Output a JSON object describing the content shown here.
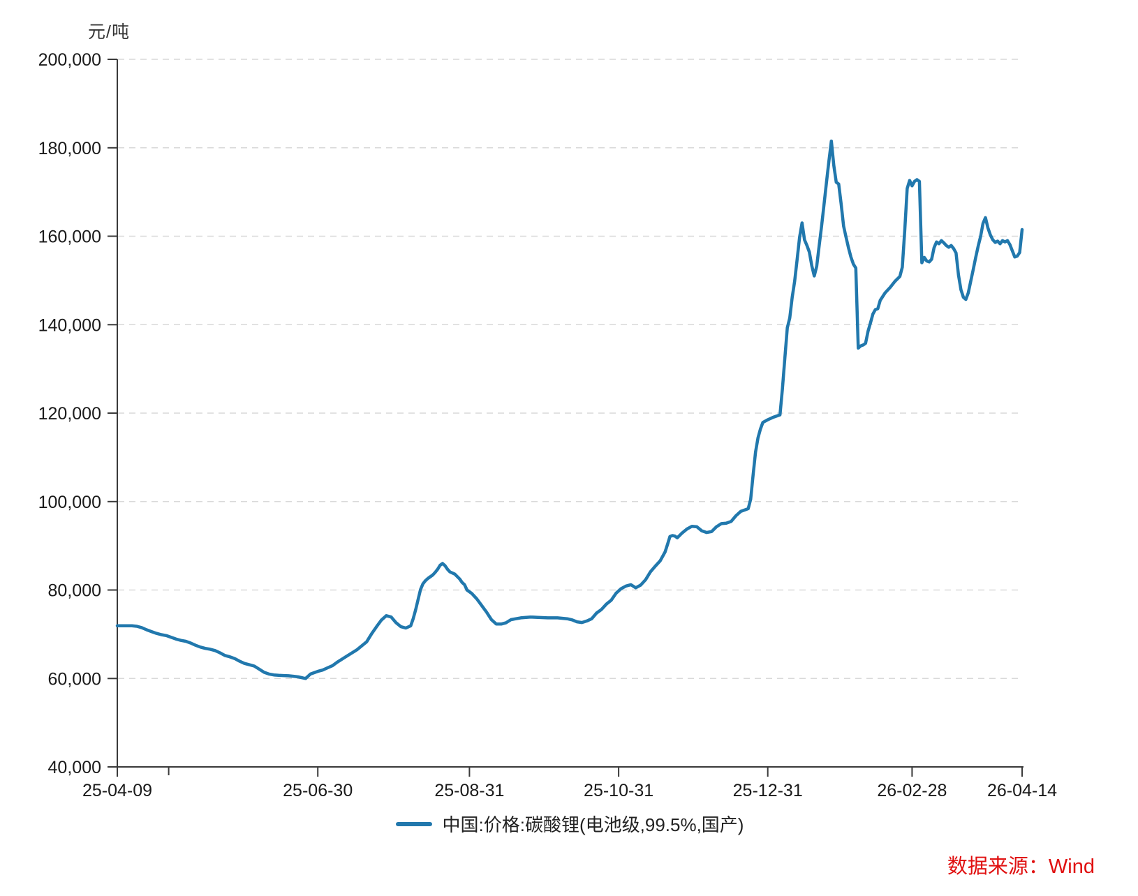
{
  "chart": {
    "unit_label": "元/吨",
    "legend_label": "中国:价格:碳酸锂(电池级,99.5%,国产)",
    "source_label": "数据来源：Wind",
    "colors": {
      "line": "#2178ad",
      "axis": "#3a3a3a",
      "tick_text": "#1a1a1a",
      "grid": "#d9d9d9",
      "source_text": "#e01010"
    }
  },
  "chart_data": {
    "type": "line",
    "title": "",
    "xlabel": "",
    "ylabel": "元/吨",
    "grid": "horizontal-dashed",
    "legend_position": "bottom-center",
    "x_axis": {
      "start_date": "2025-04-09",
      "end_date": "2026-04-14",
      "total_days": 370,
      "tick_labels": [
        "25-04-09",
        "25-06-30",
        "25-08-31",
        "25-10-31",
        "25-12-31",
        "26-02-28",
        "26-04-14"
      ],
      "tick_day_offsets": [
        0,
        82,
        144,
        205,
        266,
        325,
        370
      ],
      "minor_tick_day_offsets": [
        21
      ]
    },
    "y_axis": {
      "min": 40000,
      "max": 200000,
      "step": 20000,
      "tick_labels": [
        "40,000",
        "60,000",
        "80,000",
        "100,000",
        "120,000",
        "140,000",
        "160,000",
        "180,000",
        "200,000"
      ]
    },
    "series": [
      {
        "name": "中国:价格:碳酸锂(电池级,99.5%,国产)",
        "color": "#2178ad",
        "points_format": "[days_since_2025-04-09, price_yuan_per_ton]",
        "points": [
          [
            0,
            71900
          ],
          [
            3,
            71900
          ],
          [
            6,
            71900
          ],
          [
            8,
            71800
          ],
          [
            10,
            71500
          ],
          [
            12,
            71000
          ],
          [
            14,
            70600
          ],
          [
            16,
            70200
          ],
          [
            18,
            69900
          ],
          [
            20,
            69700
          ],
          [
            22,
            69300
          ],
          [
            24,
            68900
          ],
          [
            26,
            68600
          ],
          [
            28,
            68400
          ],
          [
            30,
            68000
          ],
          [
            32,
            67500
          ],
          [
            34,
            67100
          ],
          [
            36,
            66800
          ],
          [
            38,
            66600
          ],
          [
            40,
            66300
          ],
          [
            42,
            65800
          ],
          [
            44,
            65200
          ],
          [
            46,
            64900
          ],
          [
            48,
            64500
          ],
          [
            50,
            63900
          ],
          [
            52,
            63400
          ],
          [
            54,
            63100
          ],
          [
            56,
            62800
          ],
          [
            58,
            62100
          ],
          [
            60,
            61400
          ],
          [
            62,
            61000
          ],
          [
            64,
            60800
          ],
          [
            66,
            60700
          ],
          [
            68,
            60650
          ],
          [
            70,
            60600
          ],
          [
            72,
            60500
          ],
          [
            74,
            60350
          ],
          [
            76,
            60100
          ],
          [
            77,
            60000
          ],
          [
            78,
            60500
          ],
          [
            79,
            61000
          ],
          [
            81,
            61400
          ],
          [
            82,
            61600
          ],
          [
            84,
            61900
          ],
          [
            86,
            62400
          ],
          [
            88,
            62900
          ],
          [
            90,
            63700
          ],
          [
            92,
            64400
          ],
          [
            94,
            65100
          ],
          [
            96,
            65800
          ],
          [
            98,
            66500
          ],
          [
            100,
            67400
          ],
          [
            102,
            68300
          ],
          [
            104,
            70100
          ],
          [
            106,
            71700
          ],
          [
            108,
            73200
          ],
          [
            110,
            74200
          ],
          [
            112,
            73900
          ],
          [
            114,
            72600
          ],
          [
            116,
            71700
          ],
          [
            118,
            71400
          ],
          [
            120,
            71900
          ],
          [
            121,
            73500
          ],
          [
            122,
            75500
          ],
          [
            123,
            77800
          ],
          [
            124,
            80100
          ],
          [
            125,
            81400
          ],
          [
            126,
            82100
          ],
          [
            127,
            82600
          ],
          [
            128,
            83000
          ],
          [
            129,
            83400
          ],
          [
            130,
            84000
          ],
          [
            131,
            84700
          ],
          [
            132,
            85600
          ],
          [
            133,
            86000
          ],
          [
            134,
            85500
          ],
          [
            135,
            84700
          ],
          [
            136,
            84100
          ],
          [
            138,
            83600
          ],
          [
            140,
            82500
          ],
          [
            141,
            81700
          ],
          [
            142,
            81200
          ],
          [
            143,
            80000
          ],
          [
            145,
            79200
          ],
          [
            147,
            78000
          ],
          [
            149,
            76500
          ],
          [
            151,
            75000
          ],
          [
            153,
            73300
          ],
          [
            155,
            72300
          ],
          [
            157,
            72300
          ],
          [
            159,
            72600
          ],
          [
            161,
            73300
          ],
          [
            163,
            73500
          ],
          [
            165,
            73700
          ],
          [
            169,
            73900
          ],
          [
            172,
            73800
          ],
          [
            176,
            73700
          ],
          [
            180,
            73700
          ],
          [
            184,
            73500
          ],
          [
            186,
            73250
          ],
          [
            188,
            72800
          ],
          [
            190,
            72650
          ],
          [
            192,
            73000
          ],
          [
            194,
            73500
          ],
          [
            196,
            74800
          ],
          [
            198,
            75600
          ],
          [
            200,
            76800
          ],
          [
            202,
            77700
          ],
          [
            204,
            79300
          ],
          [
            206,
            80300
          ],
          [
            208,
            80900
          ],
          [
            210,
            81200
          ],
          [
            212,
            80500
          ],
          [
            214,
            81100
          ],
          [
            216,
            82300
          ],
          [
            218,
            84100
          ],
          [
            220,
            85400
          ],
          [
            222,
            86600
          ],
          [
            224,
            88600
          ],
          [
            225,
            90300
          ],
          [
            226,
            92100
          ],
          [
            227,
            92300
          ],
          [
            228,
            92200
          ],
          [
            229,
            91800
          ],
          [
            231,
            92900
          ],
          [
            233,
            93800
          ],
          [
            235,
            94400
          ],
          [
            237,
            94300
          ],
          [
            239,
            93400
          ],
          [
            241,
            93000
          ],
          [
            243,
            93200
          ],
          [
            245,
            94300
          ],
          [
            247,
            95000
          ],
          [
            249,
            95100
          ],
          [
            251,
            95500
          ],
          [
            253,
            96800
          ],
          [
            255,
            97800
          ],
          [
            257,
            98200
          ],
          [
            258,
            98400
          ],
          [
            259,
            100500
          ],
          [
            260,
            106000
          ],
          [
            261,
            111200
          ],
          [
            262,
            114400
          ],
          [
            263,
            116400
          ],
          [
            264,
            117900
          ],
          [
            266,
            118500
          ],
          [
            268,
            119000
          ],
          [
            270,
            119400
          ],
          [
            271,
            119600
          ],
          [
            272,
            125500
          ],
          [
            273,
            132500
          ],
          [
            274,
            139300
          ],
          [
            275,
            141500
          ],
          [
            276,
            146200
          ],
          [
            277,
            149800
          ],
          [
            278,
            154800
          ],
          [
            279,
            159800
          ],
          [
            280,
            163000
          ],
          [
            281,
            159200
          ],
          [
            282,
            157900
          ],
          [
            283,
            156400
          ],
          [
            284,
            153300
          ],
          [
            285,
            151000
          ],
          [
            286,
            153200
          ],
          [
            287,
            157800
          ],
          [
            288,
            162300
          ],
          [
            289,
            167200
          ],
          [
            290,
            172200
          ],
          [
            291,
            177000
          ],
          [
            292,
            181500
          ],
          [
            293,
            176000
          ],
          [
            294,
            172200
          ],
          [
            295,
            171800
          ],
          [
            296,
            167300
          ],
          [
            297,
            162300
          ],
          [
            298,
            159800
          ],
          [
            299,
            157400
          ],
          [
            300,
            155300
          ],
          [
            301,
            153700
          ],
          [
            302,
            152800
          ],
          [
            303,
            134700
          ],
          [
            304,
            135200
          ],
          [
            305,
            135400
          ],
          [
            306,
            135800
          ],
          [
            307,
            138500
          ],
          [
            308,
            140400
          ],
          [
            309,
            142400
          ],
          [
            310,
            143400
          ],
          [
            311,
            143600
          ],
          [
            312,
            145500
          ],
          [
            314,
            147200
          ],
          [
            316,
            148400
          ],
          [
            318,
            149800
          ],
          [
            320,
            150900
          ],
          [
            321,
            153000
          ],
          [
            322,
            161300
          ],
          [
            323,
            170800
          ],
          [
            324,
            172600
          ],
          [
            325,
            171400
          ],
          [
            326,
            172400
          ],
          [
            327,
            172800
          ],
          [
            328,
            172400
          ],
          [
            329,
            154000
          ],
          [
            330,
            155200
          ],
          [
            331,
            154400
          ],
          [
            332,
            154200
          ],
          [
            333,
            154800
          ],
          [
            334,
            157400
          ],
          [
            335,
            158700
          ],
          [
            336,
            158300
          ],
          [
            337,
            159000
          ],
          [
            338,
            158500
          ],
          [
            339,
            157900
          ],
          [
            340,
            157500
          ],
          [
            341,
            157900
          ],
          [
            342,
            157200
          ],
          [
            343,
            156200
          ],
          [
            344,
            151200
          ],
          [
            345,
            147900
          ],
          [
            346,
            146200
          ],
          [
            347,
            145700
          ],
          [
            348,
            147200
          ],
          [
            349,
            149800
          ],
          [
            350,
            152400
          ],
          [
            351,
            155100
          ],
          [
            352,
            157700
          ],
          [
            353,
            159900
          ],
          [
            354,
            162900
          ],
          [
            355,
            164200
          ],
          [
            356,
            161900
          ],
          [
            357,
            160300
          ],
          [
            358,
            159200
          ],
          [
            359,
            158600
          ],
          [
            360,
            158900
          ],
          [
            361,
            158300
          ],
          [
            362,
            159000
          ],
          [
            363,
            158700
          ],
          [
            364,
            159000
          ],
          [
            365,
            158100
          ],
          [
            366,
            156700
          ],
          [
            367,
            155300
          ],
          [
            368,
            155500
          ],
          [
            369,
            156300
          ],
          [
            370,
            161500
          ]
        ]
      }
    ]
  }
}
